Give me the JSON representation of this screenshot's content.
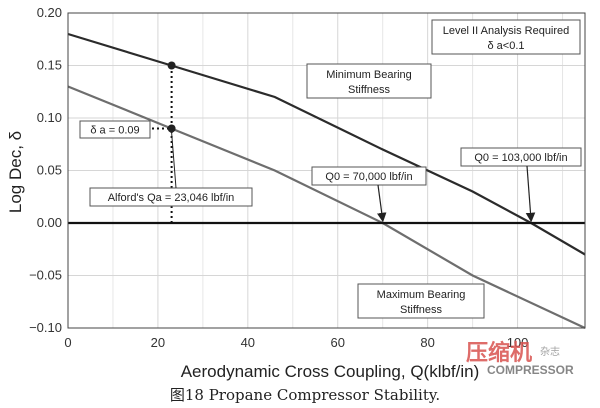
{
  "chart_data": {
    "type": "line",
    "title": "",
    "xlabel": "Aerodynamic Cross Coupling, Q(klbf/in)",
    "ylabel": "Log Dec, δ",
    "xlim": [
      0,
      115
    ],
    "ylim": [
      -0.1,
      0.2
    ],
    "x_ticks": [
      0,
      20,
      40,
      60,
      80,
      100
    ],
    "y_ticks": [
      -0.1,
      -0.05,
      0.0,
      0.05,
      0.1,
      0.15,
      0.2
    ],
    "x_tick_labels": [
      "0",
      "20",
      "40",
      "60",
      "80",
      "100"
    ],
    "y_tick_labels": [
      "−0.10",
      "−0.05",
      "0.00",
      "0.05",
      "0.10",
      "0.15",
      "0.20"
    ],
    "grid": true,
    "series": [
      {
        "label": "Minimum Bearing Stiffness",
        "color": "#2b2b2b",
        "x": [
          0,
          23,
          46,
          70,
          90,
          103,
          115
        ],
        "y": [
          0.18,
          0.15,
          0.12,
          0.07,
          0.03,
          0.0,
          -0.03
        ]
      },
      {
        "label": "Maximum Bearing Stiffness",
        "color": "#6e6e6e",
        "x": [
          0,
          23,
          46,
          70,
          90,
          115
        ],
        "y": [
          0.13,
          0.09,
          0.05,
          0.0,
          -0.05,
          -0.1
        ]
      }
    ],
    "reference_lines": [
      {
        "type": "horizontal",
        "y": 0.0
      },
      {
        "type": "vertical-dotted",
        "x": 23.046,
        "y_from": 0.0,
        "y_to": 0.15
      },
      {
        "type": "horizontal-dotted",
        "y": 0.09,
        "x_from": 0,
        "x_to": 23.046
      }
    ],
    "annotations": [
      {
        "text": "Level II Analysis Required",
        "text2": "δ a<0.1"
      },
      {
        "text": "Minimum Bearing",
        "text2": "Stiffness"
      },
      {
        "text": "Maximum Bearing",
        "text2": "Stiffness"
      },
      {
        "text": "δ a = 0.09"
      },
      {
        "text": "Alford's Qa = 23,046 lbf/in",
        "point": {
          "x": 23.046,
          "y": 0.09
        }
      },
      {
        "text": "Q0 = 70,000 lbf/in",
        "arrow_to": {
          "x": 70,
          "y": 0.0
        }
      },
      {
        "text": "Q0 = 103,000 lbf/in",
        "arrow_to": {
          "x": 103,
          "y": 0.0
        }
      }
    ],
    "markers": [
      {
        "x": 23.046,
        "y": 0.15
      },
      {
        "x": 23.046,
        "y": 0.09
      }
    ]
  },
  "caption": "图18  Propane Compressor Stability.",
  "watermark": {
    "main": "压缩机",
    "side": "杂志",
    "english": "COMPRESSOR"
  }
}
